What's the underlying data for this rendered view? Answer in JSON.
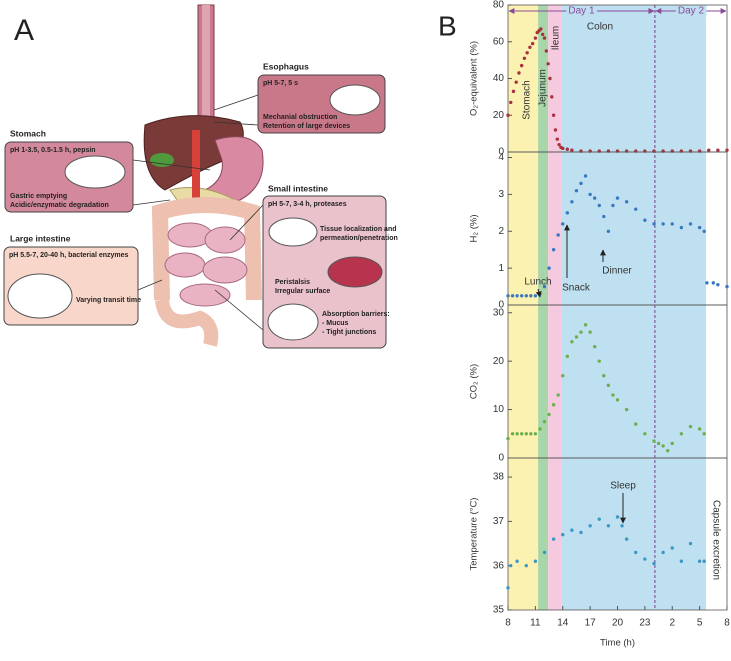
{
  "panel_a": {
    "label": "A",
    "organs": [
      {
        "title": "Esophagus",
        "lines": [
          "pH 5-7, 5 s",
          "Mechanial obstruction",
          "Retention of large devices"
        ]
      },
      {
        "title": "Stomach",
        "lines": [
          "pH 1-3.5, 0.5-1.5 h, pepsin",
          "Gastric emptying",
          "Acidic/enzymatic degradation"
        ]
      },
      {
        "title": "Small intestine",
        "lines": [
          "pH 5-7, 3-4 h, proteases",
          "Tissue localization and",
          "permeation/penetration",
          "Peristalsis",
          "Irregular surface",
          "Absorption barriers:",
          "- Mucus",
          "- Tight junctions"
        ]
      },
      {
        "title": "Large intestine",
        "lines": [
          "pH 5.5-7, 20-40 h, bacterial enzymes",
          "Varying transit time"
        ]
      }
    ]
  },
  "panel_b": {
    "label": "B",
    "regions": [
      {
        "name": "Stomach",
        "start": 8,
        "end": 11.3,
        "color": "#fbf2b2"
      },
      {
        "name": "Jejunum",
        "start": 11.3,
        "end": 12.4,
        "color": "#a8d6a8"
      },
      {
        "name": "Ileum",
        "start": 12.4,
        "end": 13.9,
        "color": "#f5c9de"
      },
      {
        "name": "Colon",
        "start": 13.9,
        "end": 29.7,
        "color": "#bfe0f0"
      }
    ],
    "days": [
      {
        "label": "Day 1",
        "start": 8,
        "end": 24.1
      },
      {
        "label": "Day 2",
        "start": 24.1,
        "end": 32
      }
    ]
  },
  "chart_data": [
    {
      "type": "scatter",
      "y_label": "O₂-equivalent (%)",
      "color": "#a8323f",
      "xlim": [
        8,
        32
      ],
      "x": [
        8,
        8.3,
        8.6,
        8.9,
        9.2,
        9.5,
        9.8,
        10.1,
        10.4,
        10.7,
        11,
        11.2,
        11.4,
        11.6,
        11.8,
        12,
        12.2,
        12.4,
        12.6,
        12.8,
        13,
        13.2,
        13.4,
        13.6,
        13.8,
        14,
        14.5,
        15,
        16,
        17,
        18,
        19,
        20,
        21,
        22,
        23,
        24,
        25,
        26,
        27,
        28,
        29,
        30,
        31,
        32
      ],
      "values": [
        20,
        27,
        33,
        38,
        43,
        47,
        51,
        54,
        57,
        59,
        62,
        65,
        66,
        67,
        64,
        62,
        55,
        48,
        40,
        30,
        20,
        12,
        7,
        4,
        2.5,
        2,
        1.5,
        1,
        0.5,
        0.5,
        0.5,
        0.5,
        0.5,
        0.5,
        0.5,
        0.5,
        0.5,
        0.5,
        0.5,
        0.5,
        0.5,
        0.5,
        1,
        1,
        1
      ],
      "ylim": [
        0,
        80
      ],
      "yticks": [
        0,
        20,
        40,
        60,
        80
      ]
    },
    {
      "type": "scatter",
      "y_label": "H₂ (%)",
      "color": "#3b78c2",
      "xlim": [
        8,
        32
      ],
      "x": [
        8,
        8.5,
        9,
        9.5,
        10,
        10.5,
        11,
        11.5,
        12,
        12.5,
        13,
        13.5,
        14,
        14.5,
        15,
        15.5,
        16,
        16.5,
        17,
        17.5,
        18,
        18.5,
        19,
        19.5,
        20,
        21,
        22,
        23,
        24,
        25,
        26,
        27,
        28,
        29,
        29.5,
        29.8,
        30.5,
        31,
        32
      ],
      "values": [
        0.25,
        0.25,
        0.25,
        0.25,
        0.25,
        0.25,
        0.25,
        0.3,
        0.5,
        1,
        1.5,
        1.9,
        2.2,
        2.5,
        2.8,
        3.1,
        3.3,
        3.5,
        3.0,
        2.9,
        2.7,
        2.4,
        2.0,
        2.7,
        2.9,
        2.8,
        2.6,
        2.3,
        2.2,
        2.2,
        2.2,
        2.1,
        2.2,
        2.1,
        2.0,
        0.6,
        0.6,
        0.55,
        0.5
      ],
      "ylim": [
        0,
        4.15
      ],
      "yticks": [
        0,
        1,
        2,
        3,
        4
      ],
      "annotations": [
        "Lunch",
        "Snack",
        "Dinner"
      ]
    },
    {
      "type": "scatter",
      "y_label": "CO₂ (%)",
      "color": "#6cb04e",
      "xlim": [
        8,
        32
      ],
      "x": [
        8,
        8.5,
        9,
        9.5,
        10,
        10.5,
        11,
        11.5,
        12,
        12.5,
        13,
        13.5,
        14,
        14.5,
        15,
        15.5,
        16,
        16.5,
        17,
        17.5,
        18,
        18.5,
        19,
        19.5,
        20,
        21,
        22,
        23,
        24,
        24.5,
        25,
        25.5,
        26,
        27,
        28,
        29,
        29.5
      ],
      "values": [
        4,
        5,
        5,
        5,
        5,
        5,
        5,
        6,
        7.5,
        9,
        11,
        13,
        17,
        21,
        24,
        25,
        26,
        27.5,
        26,
        23,
        20,
        17,
        15,
        13,
        12,
        10,
        7,
        5,
        3.5,
        3,
        2.5,
        1.5,
        3,
        5,
        6.5,
        6,
        5
      ],
      "ylim": [
        0,
        31.6
      ],
      "yticks": [
        0,
        10,
        20,
        30
      ]
    },
    {
      "type": "scatter",
      "y_label": "Temperature (°C)",
      "x_label": "Time (h)",
      "color": "#3a98c4",
      "xlim": [
        8,
        32
      ],
      "x": [
        8,
        8.3,
        9,
        10,
        11,
        12,
        13,
        14,
        15,
        16,
        17,
        18,
        19,
        20,
        20.5,
        21,
        22,
        23,
        24,
        25,
        26,
        27,
        28,
        29,
        29.5
      ],
      "values": [
        35.5,
        36,
        36.1,
        36,
        36.1,
        36.3,
        36.6,
        36.7,
        36.8,
        36.75,
        36.9,
        37.05,
        36.9,
        37.1,
        36.9,
        36.6,
        36.3,
        36.15,
        36.05,
        36.3,
        36.4,
        36.1,
        36.5,
        36.1,
        36.1
      ],
      "ylim": [
        35,
        38.43
      ],
      "yticks": [
        35,
        36,
        37,
        38
      ],
      "xticks": [
        8,
        11,
        14,
        17,
        20,
        23,
        {
          "value": 26,
          "label": "2"
        },
        {
          "value": 29,
          "label": "5"
        },
        {
          "value": 32,
          "label": "8"
        }
      ],
      "annotations": [
        "Sleep",
        "Capsule excretion"
      ]
    }
  ]
}
